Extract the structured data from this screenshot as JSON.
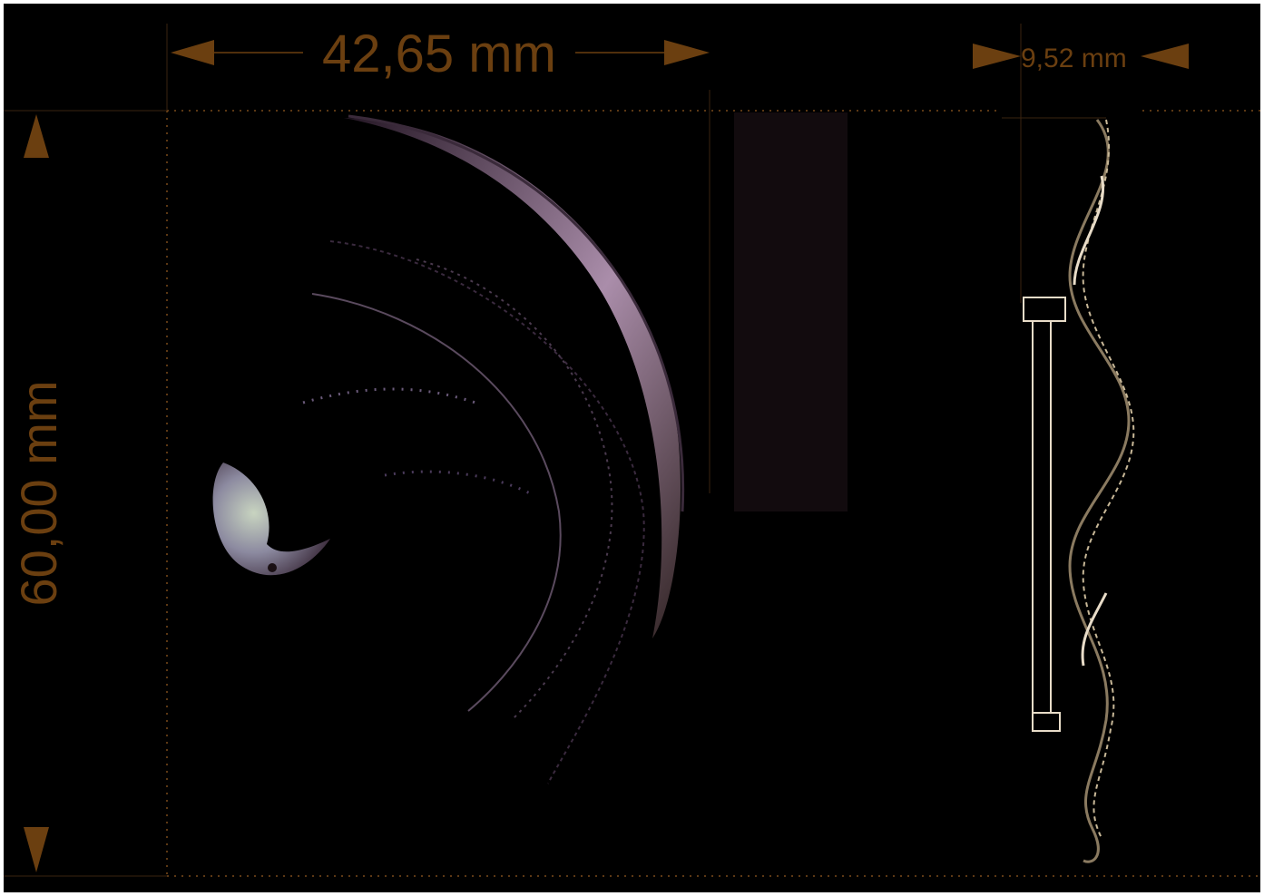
{
  "dimensions": {
    "width_label": "42,65 mm",
    "height_label": "60,00 mm",
    "thickness_label": "9,52 mm"
  },
  "colors": {
    "background": "#000000",
    "frame": "#ffffff",
    "dimension": "#6b3f10",
    "guide_dots": "#7a4a1a",
    "part_rim": "#c8a6c8",
    "side_view_lines": "#e8dcc8"
  },
  "views": {
    "front": "part-front-view",
    "side": "part-side-view"
  }
}
